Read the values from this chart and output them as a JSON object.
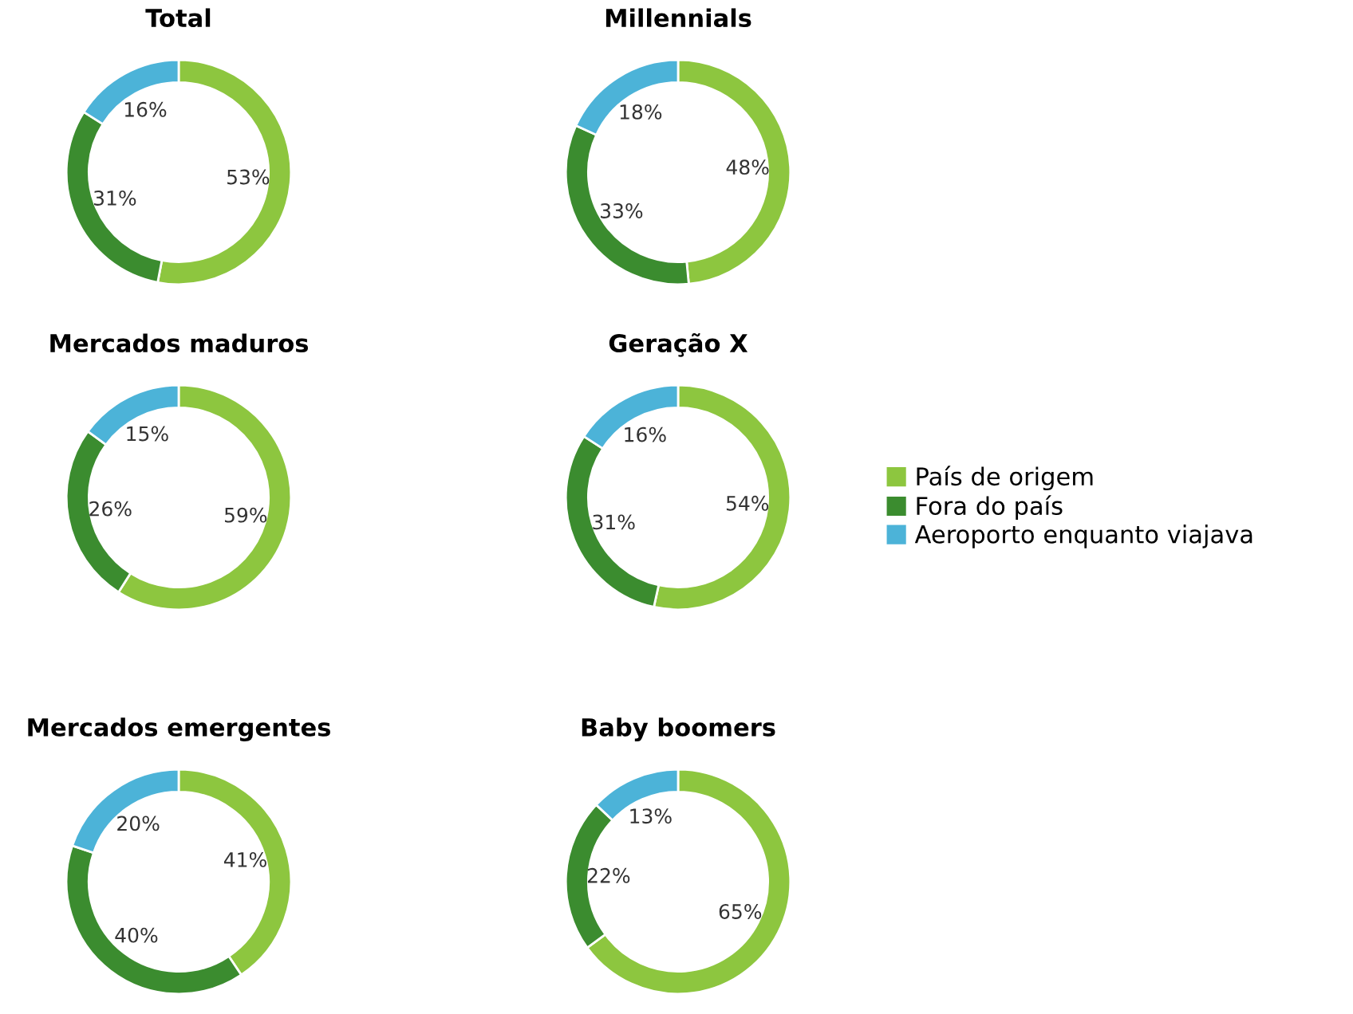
{
  "chart_data": [
    {
      "type": "donut",
      "title": "Total",
      "categories": [
        "País de origem",
        "Fora do país",
        "Aeroporto enquanto viajava"
      ],
      "values": [
        53,
        31,
        16
      ],
      "colors": [
        "#8dc63f",
        "#3b8c2f",
        "#4cb3d8"
      ],
      "value_labels": [
        "53%",
        "31%",
        "16%"
      ],
      "legend": "right"
    },
    {
      "type": "donut",
      "title": "Millennials",
      "values": [
        48,
        33,
        18
      ],
      "colors": [
        "#8dc63f",
        "#3b8c2f",
        "#4cb3d8"
      ],
      "value_labels": [
        "48%",
        "33%",
        "18%"
      ]
    },
    {
      "type": "donut",
      "title": "Mercados maduros",
      "values": [
        59,
        26,
        15
      ],
      "colors": [
        "#8dc63f",
        "#3b8c2f",
        "#4cb3d8"
      ],
      "value_labels": [
        "59%",
        "26%",
        "15%"
      ]
    },
    {
      "type": "donut",
      "title": "Geração X",
      "values": [
        54,
        31,
        16
      ],
      "colors": [
        "#8dc63f",
        "#3b8c2f",
        "#4cb3d8"
      ],
      "value_labels": [
        "54%",
        "31%",
        "16%"
      ]
    },
    {
      "type": "donut",
      "title": "Mercados emergentes",
      "values": [
        41,
        40,
        20
      ],
      "colors": [
        "#8dc63f",
        "#3b8c2f",
        "#4cb3d8"
      ],
      "value_labels": [
        "41%",
        "40%",
        "20%"
      ]
    },
    {
      "type": "donut",
      "title": "Baby boomers",
      "values": [
        65,
        22,
        13
      ],
      "colors": [
        "#8dc63f",
        "#3b8c2f",
        "#4cb3d8"
      ],
      "value_labels": [
        "65%",
        "22%",
        "13%"
      ]
    }
  ]
}
